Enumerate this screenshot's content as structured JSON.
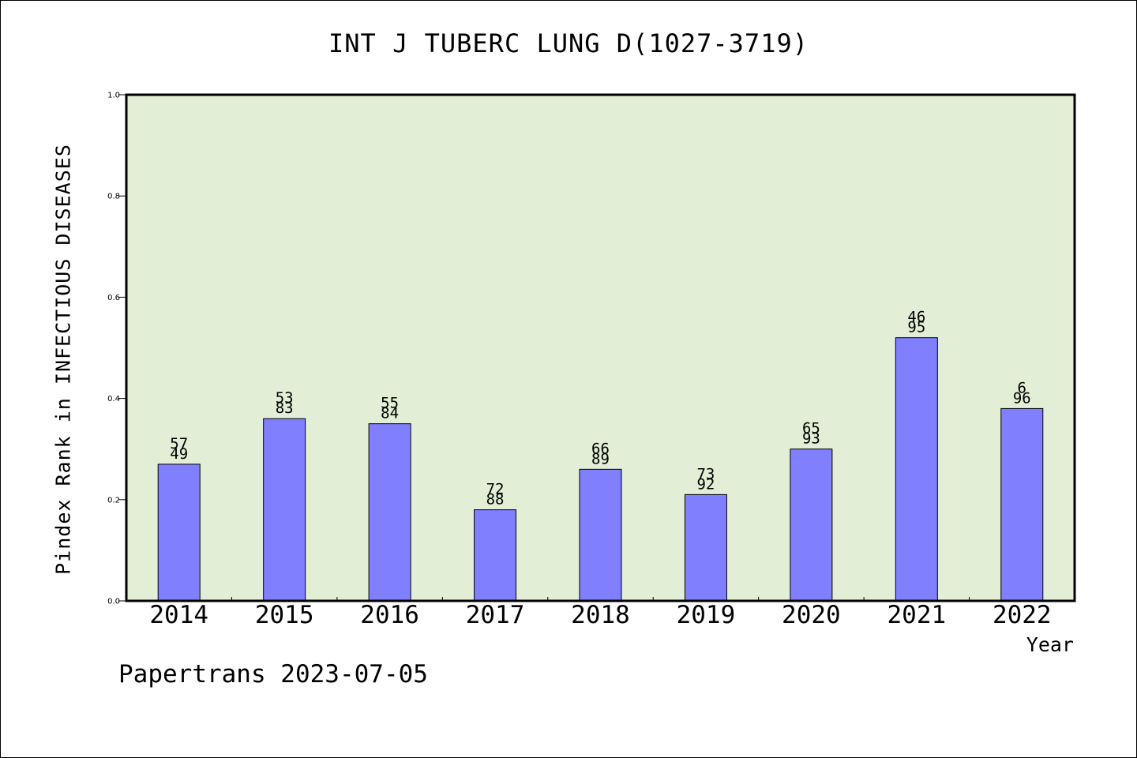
{
  "chart_data": {
    "type": "bar",
    "title": "INT J TUBERC LUNG D(1027-3719)",
    "xlabel": "Year",
    "ylabel": "Pindex Rank in INFECTIOUS DISEASES",
    "ylim": [
      0,
      1.0
    ],
    "yticks": [
      "0.0",
      "0.2",
      "0.4",
      "0.6",
      "0.8",
      "1.0"
    ],
    "categories": [
      "2014",
      "2015",
      "2016",
      "2017",
      "2018",
      "2019",
      "2020",
      "2021",
      "2022"
    ],
    "values": [
      0.27,
      0.36,
      0.35,
      0.18,
      0.26,
      0.21,
      0.3,
      0.52,
      0.38
    ],
    "labels_top": [
      "57",
      "53",
      "55",
      "72",
      "66",
      "73",
      "65",
      "46",
      "6"
    ],
    "labels_bottom": [
      "49",
      "83",
      "84",
      "88",
      "89",
      "92",
      "93",
      "95",
      "96"
    ],
    "grid": false,
    "legend": "none",
    "colors": {
      "plot_background": "#e2efd6",
      "bar_fill": "#8080ff",
      "bar_stroke": "#000000"
    }
  },
  "footer": {
    "note": "Papertrans 2023-07-05"
  }
}
